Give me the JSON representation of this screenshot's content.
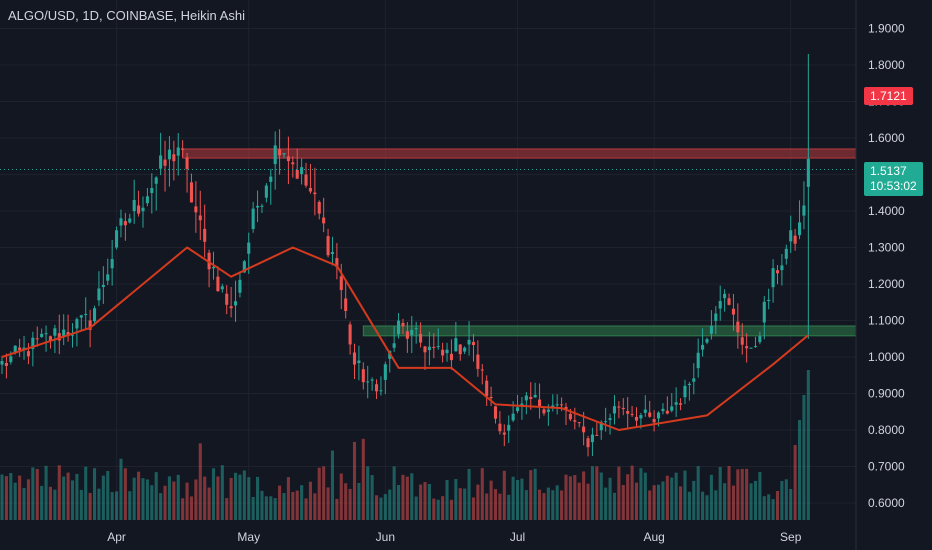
{
  "title": "ALGO/USD, 1D, COINBASE, Heikin Ashi",
  "badges": {
    "high_value": "1.7121",
    "last_value": "1.5137",
    "last_timer": "10:53:02"
  },
  "colors": {
    "background": "#131722",
    "bull": "#26a69a",
    "bear": "#ef5350",
    "ma_line": "#d63a1e",
    "resistance_zone": "#b83a3e",
    "support_zone": "#2f7d4a",
    "grid": "#1e222d",
    "text": "#d1d4dc"
  },
  "chart_data": {
    "type": "candlestick",
    "style": "Heikin Ashi",
    "symbol": "ALGO/USD",
    "interval": "1D",
    "exchange": "COINBASE",
    "y_ticks": [
      0.6,
      0.7,
      0.8,
      0.9,
      1.0,
      1.1,
      1.2,
      1.3,
      1.4,
      1.5,
      1.6,
      1.7,
      1.8,
      1.9
    ],
    "y_tick_labels": [
      "0.6000",
      "0.7000",
      "0.8000",
      "0.9000",
      "1.0000",
      "1.1000",
      "1.2000",
      "1.3000",
      "1.4000",
      "1.5000",
      "1.6000",
      "1.7000",
      "1.8000",
      "1.9000"
    ],
    "ylim": [
      0.555,
      1.935
    ],
    "x_labels": [
      "Apr",
      "May",
      "Jun",
      "Jul",
      "Aug",
      "Sep"
    ],
    "x_label_day_index": [
      26,
      56,
      87,
      117,
      148,
      179
    ],
    "day_count": 193,
    "resistance_zone": [
      1.545,
      1.57
    ],
    "support_zone": [
      1.058,
      1.085
    ],
    "last_price": 1.5137,
    "high_label": 1.7121,
    "key_points": [
      {
        "day": 0,
        "close": 0.98
      },
      {
        "day": 10,
        "close": 1.05
      },
      {
        "day": 20,
        "close": 1.1
      },
      {
        "day": 27,
        "close": 1.35
      },
      {
        "day": 40,
        "close": 1.58
      },
      {
        "day": 46,
        "close": 1.3
      },
      {
        "day": 52,
        "close": 1.12
      },
      {
        "day": 58,
        "close": 1.42
      },
      {
        "day": 63,
        "close": 1.6
      },
      {
        "day": 70,
        "close": 1.45
      },
      {
        "day": 76,
        "close": 1.25
      },
      {
        "day": 80,
        "close": 0.98
      },
      {
        "day": 85,
        "close": 0.9
      },
      {
        "day": 90,
        "close": 1.08
      },
      {
        "day": 100,
        "close": 1.0
      },
      {
        "day": 106,
        "close": 1.05
      },
      {
        "day": 113,
        "close": 0.8
      },
      {
        "day": 120,
        "close": 0.88
      },
      {
        "day": 127,
        "close": 0.86
      },
      {
        "day": 133,
        "close": 0.77
      },
      {
        "day": 140,
        "close": 0.87
      },
      {
        "day": 148,
        "close": 0.82
      },
      {
        "day": 155,
        "close": 0.9
      },
      {
        "day": 163,
        "close": 1.18
      },
      {
        "day": 170,
        "close": 1.0
      },
      {
        "day": 176,
        "close": 1.25
      },
      {
        "day": 181,
        "close": 1.35
      },
      {
        "day": 183,
        "close": 1.5137
      }
    ],
    "spike_day": 183,
    "spike_high": 1.83,
    "spike_low": 1.05,
    "ma_points": [
      {
        "day": 0,
        "value": 1.0
      },
      {
        "day": 20,
        "value": 1.08
      },
      {
        "day": 42,
        "value": 1.3
      },
      {
        "day": 52,
        "value": 1.22
      },
      {
        "day": 66,
        "value": 1.3
      },
      {
        "day": 76,
        "value": 1.25
      },
      {
        "day": 90,
        "value": 0.97
      },
      {
        "day": 102,
        "value": 0.97
      },
      {
        "day": 112,
        "value": 0.87
      },
      {
        "day": 127,
        "value": 0.86
      },
      {
        "day": 140,
        "value": 0.8
      },
      {
        "day": 160,
        "value": 0.84
      },
      {
        "day": 175,
        "value": 0.98
      },
      {
        "day": 183,
        "value": 1.06
      }
    ]
  }
}
